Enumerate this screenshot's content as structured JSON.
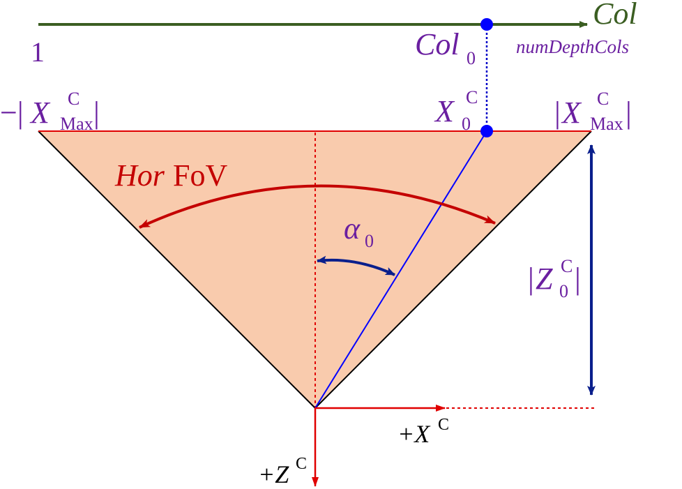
{
  "colors": {
    "axis_green": "#3b5e22",
    "purple": "#6a1fa0",
    "red": "#e00000",
    "dark_red": "#c40000",
    "blue": "#0000ff",
    "navy": "#0a1f8c",
    "fill": "#f9cbad",
    "black": "#000000"
  },
  "column_axis": {
    "start_label": "1",
    "end_label": "Col",
    "end_sublabel": "numDepthCols",
    "marker_label": "Col",
    "marker_subscript": "0"
  },
  "x_labels": {
    "neg_max_prefix": "−|",
    "x_letter": "X",
    "superscript_c": "C",
    "subscript_max": "Max",
    "bar": "|",
    "x0_subscript": "0"
  },
  "angles": {
    "horfov_italic": "Hor",
    "horfov_normal": "FoV",
    "alpha_letter": "α",
    "alpha_subscript": "0"
  },
  "depth_label": {
    "bar": "|",
    "letter": "Z",
    "superscript": "C",
    "subscript": "0"
  },
  "axis_labels": {
    "x_plus": "+X",
    "x_sup": "C",
    "z_plus": "+Z",
    "z_sup": "C"
  }
}
